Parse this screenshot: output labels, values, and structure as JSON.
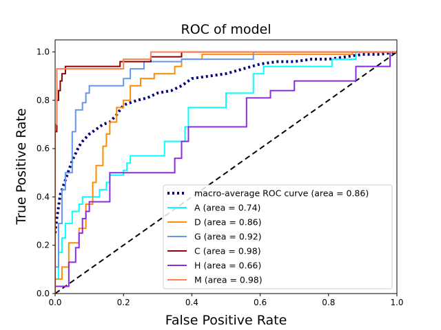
{
  "chart_data": {
    "type": "line",
    "title": "ROC of model",
    "xlabel": "False Positive Rate",
    "ylabel": "True Positive Rate",
    "xlim": [
      0.0,
      1.0
    ],
    "ylim": [
      0.0,
      1.05
    ],
    "xticks": [
      "0.0",
      "0.2",
      "0.4",
      "0.6",
      "0.8",
      "1.0"
    ],
    "yticks": [
      "0.0",
      "0.2",
      "0.4",
      "0.6",
      "0.8",
      "1.0"
    ],
    "grid": false,
    "legend_position": "lower-right",
    "series": [
      {
        "name": "macro-average ROC curve (area = 0.86)",
        "color": "#000080",
        "style": "dotted",
        "points": [
          [
            0,
            0.25
          ],
          [
            0.005,
            0.31
          ],
          [
            0.01,
            0.36
          ],
          [
            0.015,
            0.41
          ],
          [
            0.02,
            0.43
          ],
          [
            0.03,
            0.47
          ],
          [
            0.04,
            0.51
          ],
          [
            0.05,
            0.55
          ],
          [
            0.06,
            0.58
          ],
          [
            0.07,
            0.61
          ],
          [
            0.08,
            0.63
          ],
          [
            0.1,
            0.66
          ],
          [
            0.12,
            0.68
          ],
          [
            0.14,
            0.7
          ],
          [
            0.16,
            0.71
          ],
          [
            0.18,
            0.74
          ],
          [
            0.2,
            0.78
          ],
          [
            0.22,
            0.79
          ],
          [
            0.24,
            0.8
          ],
          [
            0.27,
            0.81
          ],
          [
            0.3,
            0.83
          ],
          [
            0.34,
            0.84
          ],
          [
            0.37,
            0.86
          ],
          [
            0.38,
            0.87
          ],
          [
            0.4,
            0.89
          ],
          [
            0.45,
            0.9
          ],
          [
            0.5,
            0.91
          ],
          [
            0.55,
            0.93
          ],
          [
            0.6,
            0.95
          ],
          [
            0.65,
            0.96
          ],
          [
            0.7,
            0.96
          ],
          [
            0.75,
            0.97
          ],
          [
            0.8,
            0.97
          ],
          [
            0.85,
            0.98
          ],
          [
            0.9,
            0.99
          ],
          [
            0.95,
            0.99
          ],
          [
            1,
            1
          ]
        ]
      },
      {
        "name": "A (area = 0.74)",
        "color": "#00ffff",
        "style": "solid",
        "points": [
          [
            0,
            0
          ],
          [
            0,
            0.06
          ],
          [
            0.01,
            0.06
          ],
          [
            0.01,
            0.17
          ],
          [
            0.02,
            0.17
          ],
          [
            0.02,
            0.23
          ],
          [
            0.03,
            0.23
          ],
          [
            0.03,
            0.29
          ],
          [
            0.05,
            0.29
          ],
          [
            0.05,
            0.34
          ],
          [
            0.07,
            0.34
          ],
          [
            0.07,
            0.37
          ],
          [
            0.08,
            0.37
          ],
          [
            0.08,
            0.4
          ],
          [
            0.13,
            0.4
          ],
          [
            0.13,
            0.43
          ],
          [
            0.15,
            0.43
          ],
          [
            0.15,
            0.46
          ],
          [
            0.16,
            0.46
          ],
          [
            0.16,
            0.49
          ],
          [
            0.2,
            0.49
          ],
          [
            0.2,
            0.51
          ],
          [
            0.21,
            0.51
          ],
          [
            0.21,
            0.54
          ],
          [
            0.22,
            0.54
          ],
          [
            0.22,
            0.57
          ],
          [
            0.32,
            0.57
          ],
          [
            0.32,
            0.63
          ],
          [
            0.38,
            0.63
          ],
          [
            0.38,
            0.69
          ],
          [
            0.39,
            0.69
          ],
          [
            0.39,
            0.77
          ],
          [
            0.5,
            0.77
          ],
          [
            0.5,
            0.83
          ],
          [
            0.58,
            0.83
          ],
          [
            0.58,
            0.91
          ],
          [
            0.61,
            0.91
          ],
          [
            0.61,
            0.94
          ],
          [
            0.81,
            0.94
          ],
          [
            0.81,
            0.97
          ],
          [
            0.88,
            0.97
          ],
          [
            0.88,
            1
          ],
          [
            1,
            1
          ]
        ]
      },
      {
        "name": "D (area = 0.86)",
        "color": "#ff8c00",
        "style": "solid",
        "points": [
          [
            0,
            0
          ],
          [
            0,
            0.06
          ],
          [
            0.02,
            0.06
          ],
          [
            0.02,
            0.11
          ],
          [
            0.04,
            0.11
          ],
          [
            0.04,
            0.21
          ],
          [
            0.07,
            0.21
          ],
          [
            0.07,
            0.27
          ],
          [
            0.09,
            0.27
          ],
          [
            0.09,
            0.37
          ],
          [
            0.11,
            0.37
          ],
          [
            0.11,
            0.46
          ],
          [
            0.12,
            0.46
          ],
          [
            0.12,
            0.53
          ],
          [
            0.14,
            0.53
          ],
          [
            0.14,
            0.61
          ],
          [
            0.15,
            0.61
          ],
          [
            0.15,
            0.66
          ],
          [
            0.16,
            0.66
          ],
          [
            0.16,
            0.71
          ],
          [
            0.18,
            0.71
          ],
          [
            0.18,
            0.77
          ],
          [
            0.2,
            0.77
          ],
          [
            0.2,
            0.8
          ],
          [
            0.22,
            0.8
          ],
          [
            0.22,
            0.86
          ],
          [
            0.25,
            0.86
          ],
          [
            0.25,
            0.89
          ],
          [
            0.29,
            0.89
          ],
          [
            0.29,
            0.91
          ],
          [
            0.35,
            0.91
          ],
          [
            0.35,
            0.94
          ],
          [
            0.37,
            0.94
          ],
          [
            0.37,
            0.97
          ],
          [
            0.43,
            0.97
          ],
          [
            0.43,
            0.99
          ],
          [
            0.87,
            0.99
          ],
          [
            0.87,
            1
          ],
          [
            1,
            1
          ]
        ]
      },
      {
        "name": "G (area = 0.92)",
        "color": "#6495ed",
        "style": "solid",
        "points": [
          [
            0,
            0
          ],
          [
            0,
            0.11
          ],
          [
            0.01,
            0.11
          ],
          [
            0.01,
            0.29
          ],
          [
            0.02,
            0.29
          ],
          [
            0.02,
            0.43
          ],
          [
            0.03,
            0.43
          ],
          [
            0.03,
            0.5
          ],
          [
            0.05,
            0.5
          ],
          [
            0.05,
            0.67
          ],
          [
            0.06,
            0.67
          ],
          [
            0.06,
            0.76
          ],
          [
            0.08,
            0.76
          ],
          [
            0.08,
            0.79
          ],
          [
            0.09,
            0.79
          ],
          [
            0.09,
            0.83
          ],
          [
            0.1,
            0.83
          ],
          [
            0.1,
            0.86
          ],
          [
            0.2,
            0.86
          ],
          [
            0.2,
            0.89
          ],
          [
            0.22,
            0.89
          ],
          [
            0.22,
            0.93
          ],
          [
            0.26,
            0.93
          ],
          [
            0.26,
            0.96
          ],
          [
            0.37,
            0.96
          ],
          [
            0.37,
            0.97
          ],
          [
            0.58,
            0.97
          ],
          [
            0.58,
            1
          ],
          [
            1,
            1
          ]
        ]
      },
      {
        "name": "C (area = 0.98)",
        "color": "#8b0000",
        "style": "solid",
        "points": [
          [
            0,
            0.55
          ],
          [
            0,
            0.67
          ],
          [
            0.005,
            0.67
          ],
          [
            0.005,
            0.8
          ],
          [
            0.01,
            0.8
          ],
          [
            0.01,
            0.84
          ],
          [
            0.015,
            0.84
          ],
          [
            0.015,
            0.88
          ],
          [
            0.02,
            0.88
          ],
          [
            0.02,
            0.91
          ],
          [
            0.03,
            0.91
          ],
          [
            0.03,
            0.94
          ],
          [
            0.19,
            0.94
          ],
          [
            0.19,
            0.96
          ],
          [
            0.28,
            0.96
          ],
          [
            0.28,
            0.98
          ],
          [
            0.37,
            0.98
          ],
          [
            0.37,
            1
          ],
          [
            1,
            1
          ]
        ]
      },
      {
        "name": "H (area = 0.66)",
        "color": "#8a2be2",
        "style": "solid",
        "points": [
          [
            0,
            0
          ],
          [
            0,
            0.03
          ],
          [
            0.04,
            0.03
          ],
          [
            0.04,
            0.13
          ],
          [
            0.06,
            0.13
          ],
          [
            0.06,
            0.19
          ],
          [
            0.07,
            0.19
          ],
          [
            0.07,
            0.25
          ],
          [
            0.08,
            0.25
          ],
          [
            0.08,
            0.31
          ],
          [
            0.09,
            0.31
          ],
          [
            0.09,
            0.34
          ],
          [
            0.1,
            0.34
          ],
          [
            0.1,
            0.38
          ],
          [
            0.16,
            0.38
          ],
          [
            0.16,
            0.5
          ],
          [
            0.35,
            0.5
          ],
          [
            0.35,
            0.56
          ],
          [
            0.37,
            0.56
          ],
          [
            0.37,
            0.63
          ],
          [
            0.39,
            0.63
          ],
          [
            0.39,
            0.69
          ],
          [
            0.56,
            0.69
          ],
          [
            0.56,
            0.81
          ],
          [
            0.63,
            0.81
          ],
          [
            0.63,
            0.84
          ],
          [
            0.7,
            0.84
          ],
          [
            0.7,
            0.88
          ],
          [
            0.88,
            0.88
          ],
          [
            0.88,
            0.94
          ],
          [
            0.98,
            0.94
          ],
          [
            0.98,
            1
          ],
          [
            1,
            1
          ]
        ]
      },
      {
        "name": "M (area = 0.98)",
        "color": "#ff7f50",
        "style": "solid",
        "points": [
          [
            0,
            0
          ],
          [
            0,
            0.7
          ],
          [
            0.005,
            0.7
          ],
          [
            0.005,
            0.93
          ],
          [
            0.2,
            0.93
          ],
          [
            0.2,
            0.97
          ],
          [
            0.28,
            0.97
          ],
          [
            0.28,
            1
          ],
          [
            1,
            1
          ]
        ]
      }
    ],
    "reference_line": {
      "color": "#000000",
      "style": "dashed",
      "points": [
        [
          0,
          0
        ],
        [
          1,
          1
        ]
      ]
    }
  }
}
